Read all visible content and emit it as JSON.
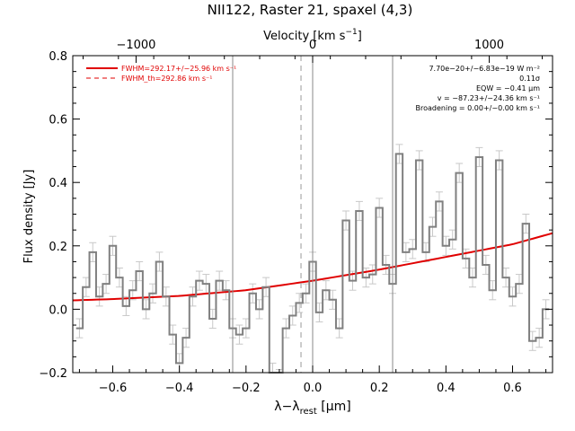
{
  "chart_data": {
    "type": "line",
    "title": "NII122, Raster 21, spaxel (4,3)",
    "xlabel": "λ−λ_rest [μm]",
    "xlabel_main": "λ−λ",
    "xlabel_sub": "rest",
    "xlabel_unit": " [μm]",
    "ylabel": "Flux density [Jy]",
    "top_axis_label": "Velocity [km s⁻¹]",
    "xlim": [
      -0.72,
      0.72
    ],
    "ylim": [
      -0.2,
      0.8
    ],
    "xticks": [
      -0.6,
      -0.4,
      -0.2,
      0.0,
      0.2,
      0.4,
      0.6
    ],
    "xtick_labels": [
      "−0.6",
      "−0.4",
      "−0.2",
      "0.0",
      "0.2",
      "0.4",
      "0.6"
    ],
    "yticks": [
      -0.2,
      0.0,
      0.2,
      0.4,
      0.6,
      0.8
    ],
    "ytick_labels": [
      "−0.2",
      "0.0",
      "0.2",
      "0.4",
      "0.6",
      "0.8"
    ],
    "top_ticks": [
      -1000,
      0,
      1000
    ],
    "top_tick_labels": [
      "−1000",
      "0",
      "1000"
    ],
    "vertical_lines_solid": [
      -0.24,
      0.0,
      0.24
    ],
    "vertical_line_dashed": -0.035,
    "legend": [
      {
        "label": "FWHM=292.17+/−25.96 km s⁻¹",
        "style": "solid",
        "color": "#e00000"
      },
      {
        "label": "FWHM_th=292.86 km s⁻¹",
        "style": "dashed",
        "color": "#e00000"
      }
    ],
    "annotations": [
      "7.70e−20+/−6.83e−19 W m⁻²",
      "0.11σ",
      "EQW = −0.41 μm",
      "v = −87.23+/−24.36 km s⁻¹",
      "Broadening = 0.00+/−0.00 km s⁻¹"
    ],
    "fit_curve": {
      "color": "#e00000",
      "x": [
        -0.72,
        -0.6,
        -0.4,
        -0.2,
        0.0,
        0.2,
        0.4,
        0.6,
        0.72
      ],
      "y": [
        0.028,
        0.032,
        0.042,
        0.06,
        0.09,
        0.125,
        0.165,
        0.205,
        0.24
      ]
    },
    "spectrum": {
      "step_color": "#808080",
      "error_color": "#c8c8c8",
      "x": [
        -0.7,
        -0.68,
        -0.66,
        -0.64,
        -0.62,
        -0.6,
        -0.58,
        -0.56,
        -0.54,
        -0.52,
        -0.5,
        -0.48,
        -0.46,
        -0.44,
        -0.42,
        -0.4,
        -0.38,
        -0.36,
        -0.34,
        -0.32,
        -0.3,
        -0.28,
        -0.26,
        -0.24,
        -0.22,
        -0.2,
        -0.18,
        -0.16,
        -0.14,
        -0.12,
        -0.1,
        -0.08,
        -0.06,
        -0.04,
        -0.02,
        0.0,
        0.02,
        0.04,
        0.06,
        0.08,
        0.1,
        0.12,
        0.14,
        0.16,
        0.18,
        0.2,
        0.22,
        0.24,
        0.26,
        0.28,
        0.3,
        0.32,
        0.34,
        0.36,
        0.38,
        0.4,
        0.42,
        0.44,
        0.46,
        0.48,
        0.5,
        0.52,
        0.54,
        0.56,
        0.58,
        0.6,
        0.62,
        0.64,
        0.66,
        0.68,
        0.7
      ],
      "y": [
        -0.06,
        0.07,
        0.18,
        0.04,
        0.08,
        0.2,
        0.1,
        0.01,
        0.06,
        0.12,
        0.0,
        0.05,
        0.15,
        0.04,
        -0.08,
        -0.17,
        -0.09,
        0.04,
        0.09,
        0.08,
        -0.03,
        0.09,
        0.06,
        -0.06,
        -0.08,
        -0.06,
        0.05,
        0.0,
        0.07,
        -0.2,
        -0.22,
        -0.06,
        -0.02,
        0.02,
        0.05,
        0.15,
        -0.01,
        0.06,
        0.03,
        -0.06,
        0.28,
        0.09,
        0.31,
        0.1,
        0.11,
        0.32,
        0.14,
        0.08,
        0.49,
        0.18,
        0.19,
        0.47,
        0.18,
        0.26,
        0.34,
        0.2,
        0.22,
        0.43,
        0.16,
        0.1,
        0.48,
        0.14,
        0.06,
        0.47,
        0.1,
        0.04,
        0.08,
        0.27,
        -0.1,
        -0.09,
        0.0
      ],
      "err": 0.03
    }
  }
}
